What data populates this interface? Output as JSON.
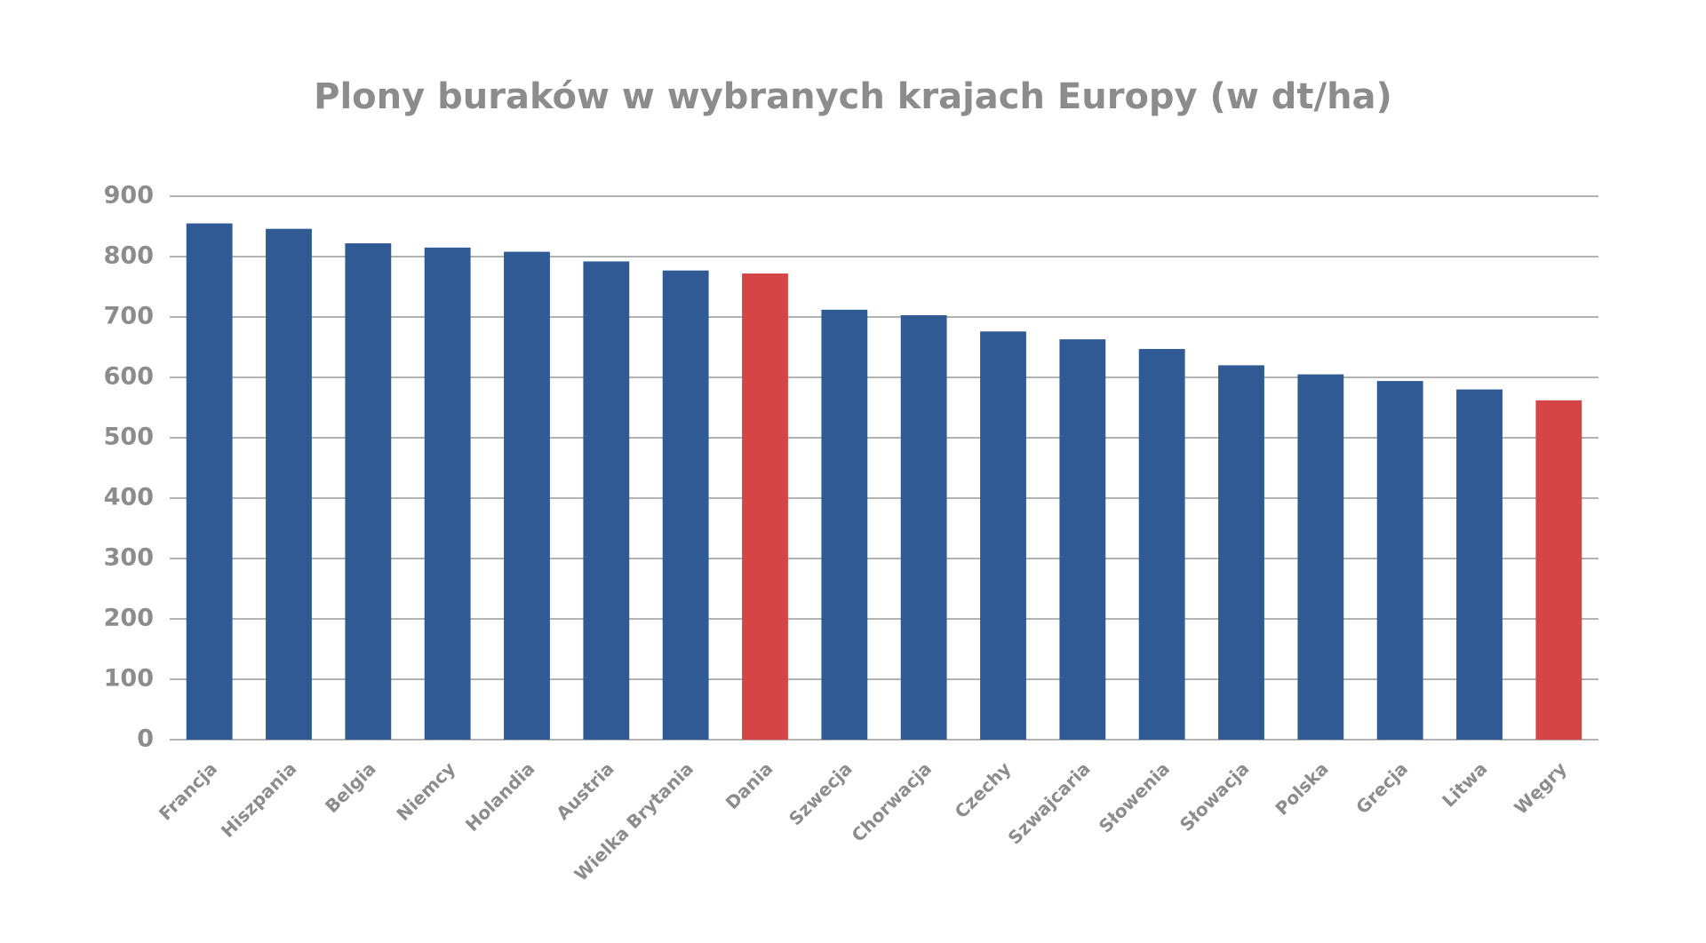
{
  "chart_data": {
    "type": "bar",
    "title": "Plony buraków w wybranych krajach Europy (w dt/ha)",
    "categories": [
      "Francja",
      "Hiszpania",
      "Belgia",
      "Niemcy",
      "Holandia",
      "Austria",
      "Wielka Brytania",
      "Dania",
      "Szwecja",
      "Chorwacja",
      "Czechy",
      "Szwajcaria",
      "Słowenia",
      "Słowacja",
      "Polska",
      "Grecja",
      "Litwa",
      "Węgry"
    ],
    "values": [
      855,
      846,
      822,
      815,
      808,
      792,
      777,
      772,
      712,
      703,
      676,
      663,
      647,
      620,
      605,
      594,
      580,
      562
    ],
    "colors": [
      "#2f5a94",
      "#2f5a94",
      "#2f5a94",
      "#2f5a94",
      "#2f5a94",
      "#2f5a94",
      "#2f5a94",
      "#d64545",
      "#2f5a94",
      "#2f5a94",
      "#2f5a94",
      "#2f5a94",
      "#2f5a94",
      "#2f5a94",
      "#2f5a94",
      "#2f5a94",
      "#2f5a94",
      "#d64545"
    ],
    "ylim": [
      0,
      900
    ],
    "yticks": [
      0,
      100,
      200,
      300,
      400,
      500,
      600,
      700,
      800,
      900
    ],
    "grid": true
  }
}
